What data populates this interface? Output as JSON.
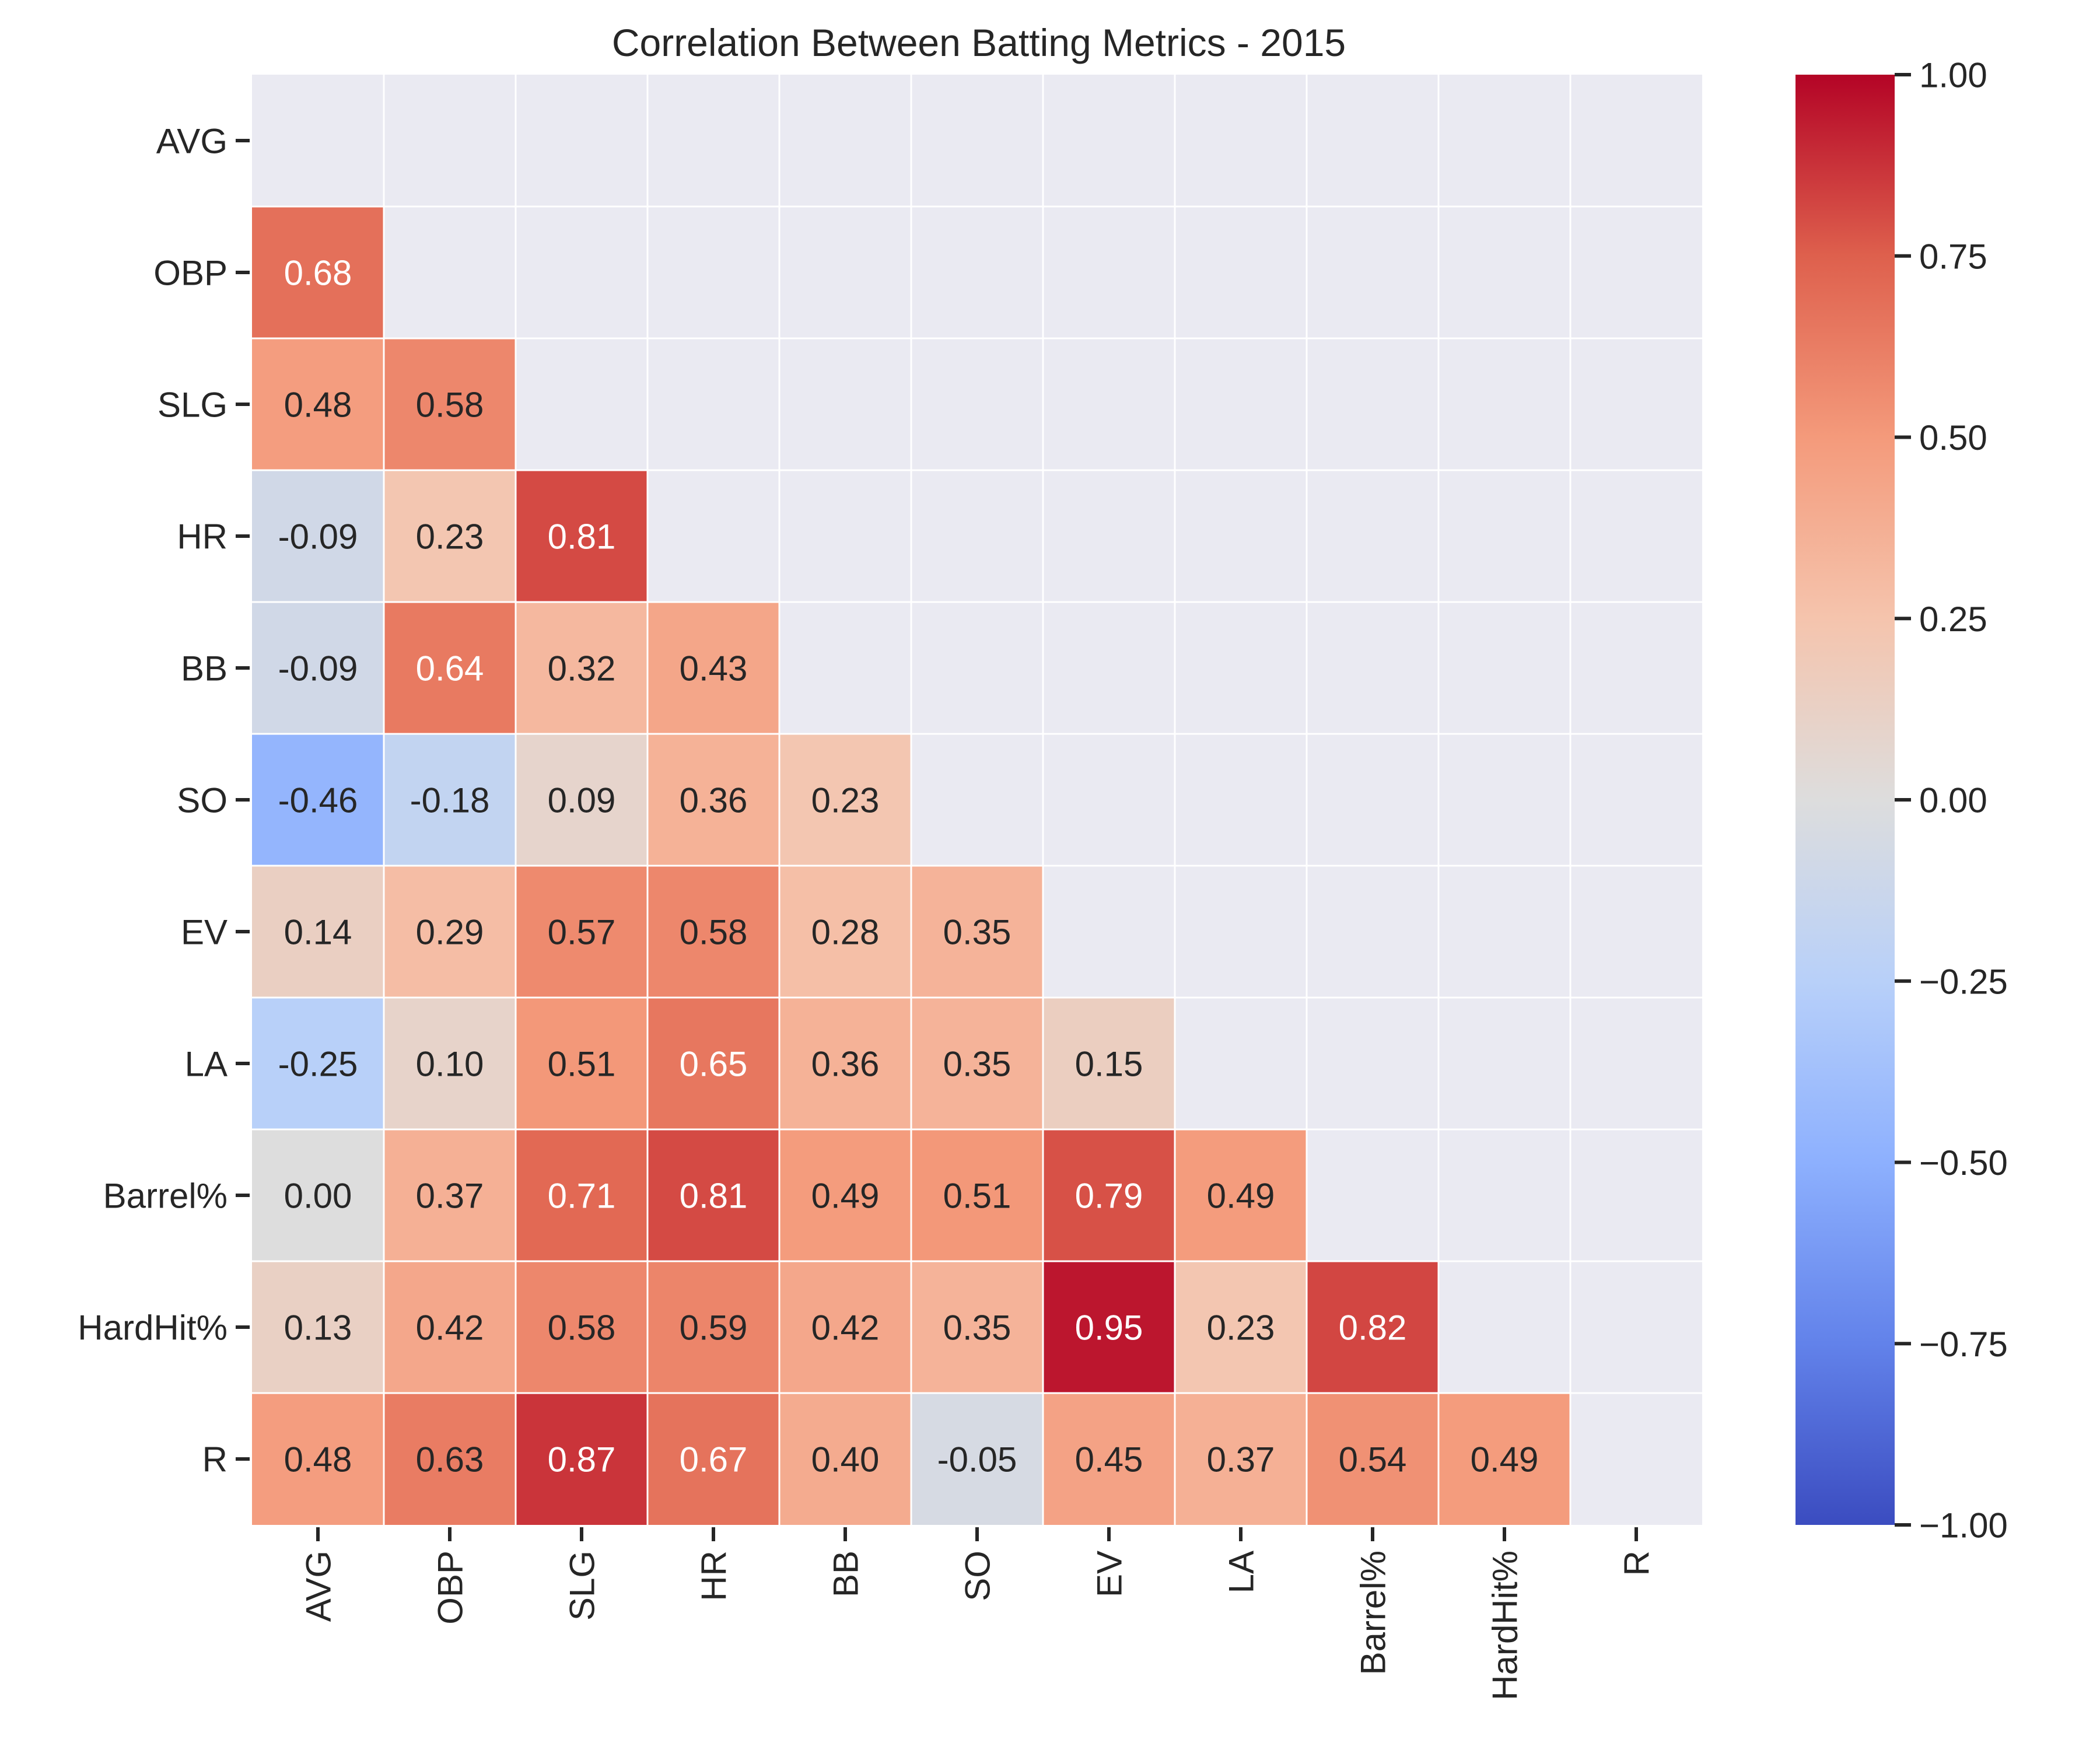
{
  "chart_data": {
    "type": "heatmap",
    "title": "Correlation Between Batting Metrics - 2015",
    "xlabel": "",
    "ylabel": "",
    "categories": [
      "AVG",
      "OBP",
      "SLG",
      "HR",
      "BB",
      "SO",
      "EV",
      "LA",
      "Barrel%",
      "HardHit%",
      "R"
    ],
    "values": [
      [
        null,
        null,
        null,
        null,
        null,
        null,
        null,
        null,
        null,
        null,
        null
      ],
      [
        0.68,
        null,
        null,
        null,
        null,
        null,
        null,
        null,
        null,
        null,
        null
      ],
      [
        0.48,
        0.58,
        null,
        null,
        null,
        null,
        null,
        null,
        null,
        null,
        null
      ],
      [
        -0.09,
        0.23,
        0.81,
        null,
        null,
        null,
        null,
        null,
        null,
        null,
        null
      ],
      [
        -0.09,
        0.64,
        0.32,
        0.43,
        null,
        null,
        null,
        null,
        null,
        null,
        null
      ],
      [
        -0.46,
        -0.18,
        0.09,
        0.36,
        0.23,
        null,
        null,
        null,
        null,
        null,
        null
      ],
      [
        0.14,
        0.29,
        0.57,
        0.58,
        0.28,
        0.35,
        null,
        null,
        null,
        null,
        null
      ],
      [
        -0.25,
        0.1,
        0.51,
        0.65,
        0.36,
        0.35,
        0.15,
        null,
        null,
        null,
        null
      ],
      [
        0.0,
        0.37,
        0.71,
        0.81,
        0.49,
        0.51,
        0.79,
        0.49,
        null,
        null,
        null
      ],
      [
        0.13,
        0.42,
        0.58,
        0.59,
        0.42,
        0.35,
        0.95,
        0.23,
        0.82,
        null,
        null
      ],
      [
        0.48,
        0.63,
        0.87,
        0.67,
        0.4,
        -0.05,
        0.45,
        0.37,
        0.54,
        0.49,
        null
      ]
    ],
    "mask": "upper-triangle-including-diagonal",
    "colorscale": "coolwarm",
    "vmin": -1.0,
    "vmax": 1.0,
    "colorbar_ticks": [
      "1.00",
      "0.75",
      "0.50",
      "0.25",
      "0.00",
      "−0.25",
      "−0.50",
      "−0.75",
      "−1.00"
    ],
    "colorbar_tick_values": [
      1.0,
      0.75,
      0.5,
      0.25,
      0.0,
      -0.25,
      -0.5,
      -0.75,
      -1.0
    ],
    "grid": true,
    "legend": "colorbar-right",
    "colors": {
      "background": "#eaeaf2",
      "gridline": "#ffffff",
      "text_dark": "#262626",
      "text_light": "#ffffff"
    }
  }
}
